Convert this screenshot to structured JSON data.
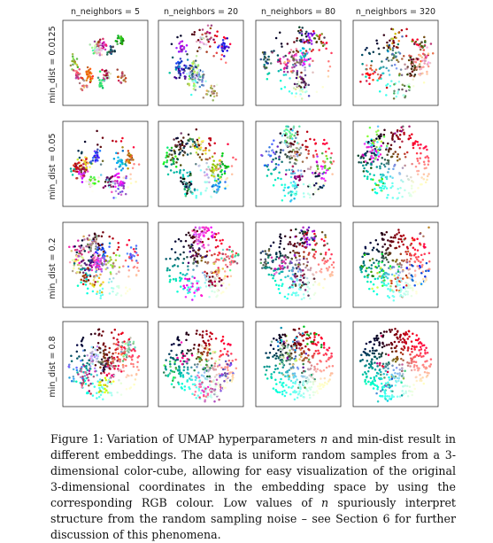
{
  "figure": {
    "column_titles": [
      "n_neighbors = 5",
      "n_neighbors = 20",
      "n_neighbors = 80",
      "n_neighbors = 320"
    ],
    "row_titles": [
      "min_dist = 0.0125",
      "min_dist = 0.05",
      "min_dist = 0.2",
      "min_dist = 0.8"
    ]
  },
  "chart_data": {
    "type": "scatter",
    "layout": "4x4 small multiples",
    "columns_parameter": "n_neighbors",
    "columns_values": [
      5,
      20,
      80,
      320
    ],
    "rows_parameter": "min_dist",
    "rows_values": [
      0.0125,
      0.05,
      0.2,
      0.8
    ],
    "axes": "no ticks, framed panels",
    "point_color": "RGB of original 3-dimensional coordinates"
  },
  "caption": {
    "label": "Figure 1:",
    "text_1": "Variation of UMAP hyperparameters ",
    "var_1": "n",
    "text_2": " and min-dist result in different embeddings. The data is uniform random samples from a 3-dimensional color-cube, allowing for easy visualization of the original 3-dimensional coordinates in the embedding space by using the corresponding RGB colour. Low values of ",
    "var_2": "n",
    "text_3": " spuriously interpret structure from the random sampling noise – see Section 6 for further discussion of this phenomena."
  }
}
